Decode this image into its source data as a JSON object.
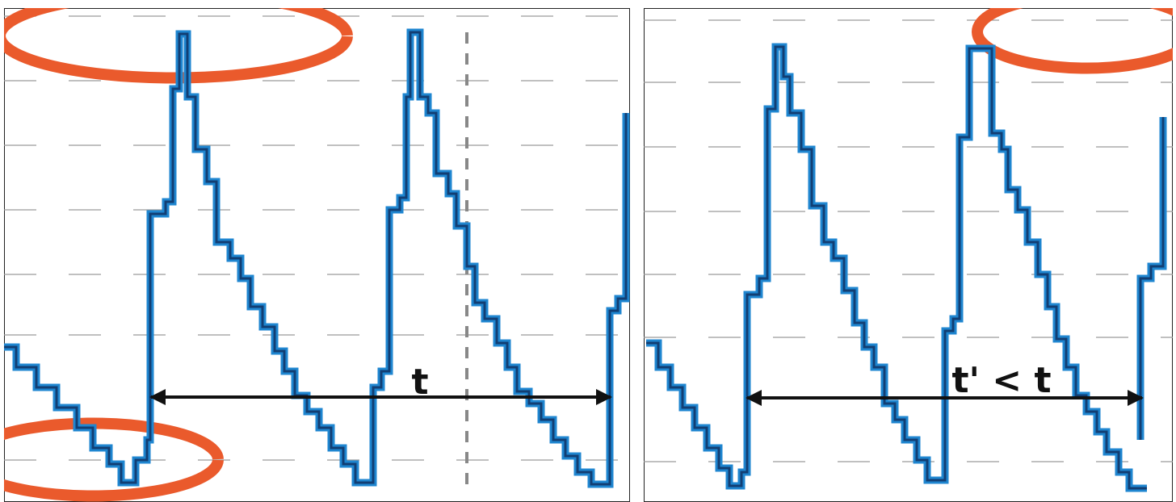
{
  "panels": [
    {
      "label": "t"
    },
    {
      "label": "t' < t"
    }
  ]
}
